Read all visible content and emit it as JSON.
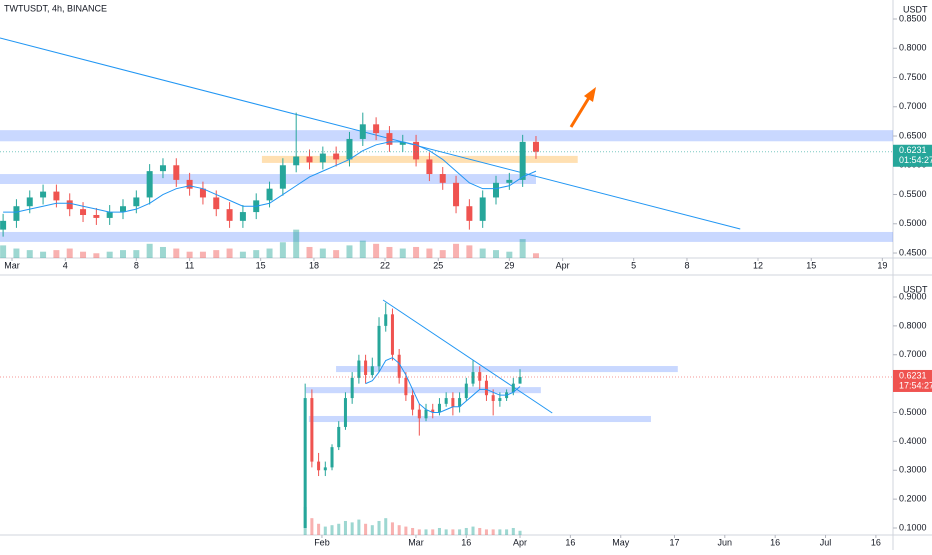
{
  "chart_data": [
    {
      "type": "candlestick",
      "title": "TWTUSDT, 4h, BINANCE",
      "axis_label": "USDT",
      "x": [
        -0.5,
        0.25,
        1,
        1.75,
        2.5,
        3.25,
        4,
        4.75,
        5.5,
        6.25,
        7,
        7.75,
        8.5,
        9.25,
        10,
        10.75,
        11.5,
        12.25,
        13,
        13.75,
        14.5,
        15.25,
        16,
        16.75,
        17.5,
        18.25,
        19,
        19.75,
        20.5,
        21.25,
        22,
        22.75,
        23.5,
        24.25,
        25,
        25.75,
        26.5,
        27.25,
        28,
        28.75,
        29.5
      ],
      "open": [
        0.49,
        0.505,
        0.53,
        0.545,
        0.555,
        0.54,
        0.525,
        0.515,
        0.51,
        0.52,
        0.53,
        0.545,
        0.59,
        0.6,
        0.575,
        0.56,
        0.545,
        0.525,
        0.505,
        0.52,
        0.54,
        0.56,
        0.6,
        0.615,
        0.605,
        0.62,
        0.61,
        0.645,
        0.67,
        0.655,
        0.635,
        0.64,
        0.61,
        0.585,
        0.57,
        0.53,
        0.505,
        0.545,
        0.57,
        0.575,
        0.64
      ],
      "high": [
        0.517,
        0.542,
        0.557,
        0.567,
        0.567,
        0.552,
        0.537,
        0.527,
        0.532,
        0.542,
        0.557,
        0.602,
        0.612,
        0.612,
        0.587,
        0.572,
        0.557,
        0.537,
        0.532,
        0.552,
        0.572,
        0.612,
        0.69,
        0.627,
        0.632,
        0.632,
        0.657,
        0.69,
        0.682,
        0.667,
        0.652,
        0.652,
        0.622,
        0.597,
        0.582,
        0.542,
        0.557,
        0.582,
        0.587,
        0.652,
        0.65
      ],
      "low": [
        0.478,
        0.493,
        0.518,
        0.533,
        0.528,
        0.513,
        0.503,
        0.498,
        0.498,
        0.508,
        0.518,
        0.533,
        0.578,
        0.563,
        0.548,
        0.533,
        0.513,
        0.493,
        0.493,
        0.508,
        0.528,
        0.548,
        0.588,
        0.593,
        0.593,
        0.598,
        0.598,
        0.633,
        0.643,
        0.623,
        0.623,
        0.598,
        0.573,
        0.558,
        0.518,
        0.49,
        0.493,
        0.533,
        0.558,
        0.563,
        0.611
      ],
      "close": [
        0.505,
        0.53,
        0.545,
        0.555,
        0.54,
        0.525,
        0.515,
        0.51,
        0.52,
        0.53,
        0.545,
        0.59,
        0.6,
        0.575,
        0.56,
        0.545,
        0.525,
        0.505,
        0.52,
        0.54,
        0.56,
        0.6,
        0.615,
        0.605,
        0.62,
        0.61,
        0.645,
        0.67,
        0.655,
        0.635,
        0.64,
        0.61,
        0.585,
        0.57,
        0.53,
        0.505,
        0.545,
        0.57,
        0.575,
        0.64,
        0.6231
      ],
      "volume": [
        8,
        6,
        5,
        4,
        5,
        6,
        4,
        3,
        4,
        5,
        5,
        9,
        7,
        6,
        4,
        4,
        5,
        6,
        4,
        5,
        6,
        10,
        18,
        7,
        6,
        5,
        8,
        11,
        9,
        7,
        6,
        7,
        6,
        5,
        9,
        8,
        6,
        5,
        4,
        12,
        3
      ],
      "ma": [
        0.52,
        0.52,
        0.525,
        0.53,
        0.535,
        0.535,
        0.53,
        0.525,
        0.52,
        0.52,
        0.525,
        0.535,
        0.55,
        0.56,
        0.565,
        0.56,
        0.55,
        0.54,
        0.53,
        0.53,
        0.535,
        0.55,
        0.565,
        0.58,
        0.59,
        0.6,
        0.61,
        0.625,
        0.635,
        0.64,
        0.64,
        0.635,
        0.625,
        0.61,
        0.59,
        0.57,
        0.56,
        0.56,
        0.565,
        0.58,
        0.59
      ],
      "ma_color": "#2196f3",
      "up_color": "#26a69a",
      "down_color": "#ef5350",
      "xlim": [
        -0.675,
        49.6
      ],
      "ylim": [
        0.4415,
        0.8825
      ],
      "xticks": [
        {
          "value": 0,
          "label": "Mar"
        },
        {
          "value": 3,
          "label": "4"
        },
        {
          "value": 7,
          "label": "8"
        },
        {
          "value": 10,
          "label": "11"
        },
        {
          "value": 14,
          "label": "15"
        },
        {
          "value": 17,
          "label": "18"
        },
        {
          "value": 21,
          "label": "22"
        },
        {
          "value": 24,
          "label": "25"
        },
        {
          "value": 28,
          "label": "29"
        },
        {
          "value": 31,
          "label": "Apr"
        },
        {
          "value": 35,
          "label": "5"
        },
        {
          "value": 38,
          "label": "8"
        },
        {
          "value": 42,
          "label": "12"
        },
        {
          "value": 45,
          "label": "15"
        },
        {
          "value": 49,
          "label": "19"
        }
      ],
      "yticks": [
        {
          "value": 0.45,
          "label": "0.4500"
        },
        {
          "value": 0.5,
          "label": "0.5000"
        },
        {
          "value": 0.55,
          "label": "0.5500"
        },
        {
          "value": 0.6,
          "label": "0.6000"
        },
        {
          "value": 0.65,
          "label": "0.6500"
        },
        {
          "value": 0.7,
          "label": "0.7000"
        },
        {
          "value": 0.75,
          "label": "0.7500"
        },
        {
          "value": 0.8,
          "label": "0.8000"
        },
        {
          "value": 0.85,
          "label": "0.8500"
        }
      ],
      "zones": [
        {
          "x": [
            -0.675,
            49.6
          ],
          "y": [
            0.641,
            0.66
          ],
          "color": "rgba(41,98,255,0.25)"
        },
        {
          "x": [
            -0.675,
            29.5
          ],
          "y": [
            0.568,
            0.585
          ],
          "color": "rgba(41,98,255,0.25)"
        },
        {
          "x": [
            -0.675,
            49.6
          ],
          "y": [
            0.469,
            0.486
          ],
          "color": "rgba(41,98,255,0.25)"
        },
        {
          "x": [
            14.07,
            31.85
          ],
          "y": [
            0.604,
            0.616
          ],
          "color": "rgba(255,152,0,0.3)"
        }
      ],
      "trendlines": [
        {
          "x": [
            -0.675,
            41
          ],
          "y": [
            0.8175,
            0.491
          ],
          "color": "#2196f3"
        }
      ],
      "last_price": 0.6231,
      "last_color": "#26a69a",
      "countdown": "01:54:27"
    },
    {
      "type": "candlestick",
      "axis_label": "USDT",
      "x": [
        -5,
        -3,
        -1,
        1,
        3,
        5,
        7,
        9,
        11,
        13,
        15,
        17,
        19,
        21,
        23,
        25,
        27,
        29,
        31,
        33,
        35,
        37,
        39,
        41,
        43,
        45,
        47,
        49,
        51,
        53,
        55,
        57,
        59
      ],
      "open": [
        0.1,
        0.55,
        0.33,
        0.3,
        0.31,
        0.38,
        0.45,
        0.55,
        0.62,
        0.68,
        0.63,
        0.66,
        0.8,
        0.84,
        0.7,
        0.62,
        0.56,
        0.51,
        0.48,
        0.51,
        0.5,
        0.53,
        0.55,
        0.52,
        0.55,
        0.6,
        0.64,
        0.61,
        0.56,
        0.54,
        0.55,
        0.57,
        0.6
      ],
      "high": [
        0.6,
        0.58,
        0.36,
        0.33,
        0.39,
        0.47,
        0.57,
        0.64,
        0.7,
        0.7,
        0.69,
        0.83,
        0.88,
        0.86,
        0.72,
        0.64,
        0.58,
        0.53,
        0.53,
        0.53,
        0.55,
        0.57,
        0.57,
        0.57,
        0.62,
        0.68,
        0.66,
        0.63,
        0.58,
        0.57,
        0.58,
        0.62,
        0.65
      ],
      "low": [
        0.1,
        0.31,
        0.28,
        0.28,
        0.3,
        0.37,
        0.44,
        0.53,
        0.6,
        0.6,
        0.62,
        0.64,
        0.78,
        0.68,
        0.6,
        0.54,
        0.49,
        0.42,
        0.47,
        0.48,
        0.49,
        0.52,
        0.49,
        0.5,
        0.54,
        0.59,
        0.58,
        0.54,
        0.49,
        0.52,
        0.54,
        0.56,
        0.6
      ],
      "close": [
        0.55,
        0.33,
        0.3,
        0.31,
        0.38,
        0.45,
        0.55,
        0.62,
        0.68,
        0.63,
        0.66,
        0.8,
        0.84,
        0.7,
        0.62,
        0.56,
        0.51,
        0.48,
        0.51,
        0.5,
        0.53,
        0.55,
        0.52,
        0.55,
        0.6,
        0.64,
        0.61,
        0.56,
        0.54,
        0.55,
        0.57,
        0.6,
        0.6231
      ],
      "volume": [
        20,
        12,
        8,
        6,
        7,
        8,
        10,
        9,
        11,
        8,
        7,
        10,
        12,
        9,
        7,
        6,
        5,
        4,
        4,
        4,
        5,
        4,
        4,
        4,
        5,
        6,
        5,
        4,
        4,
        4,
        4,
        5,
        3
      ],
      "ma": [
        null,
        null,
        null,
        null,
        null,
        null,
        null,
        null,
        null,
        0.6,
        0.61,
        0.64,
        0.68,
        0.69,
        0.67,
        0.63,
        0.58,
        0.53,
        0.51,
        0.5,
        0.5,
        0.51,
        0.52,
        0.52,
        0.54,
        0.56,
        0.58,
        0.58,
        0.57,
        0.56,
        0.56,
        0.57,
        0.59
      ],
      "ma_color": "#2196f3",
      "up_color": "#26a69a",
      "down_color": "#ef5350",
      "xlim": [
        -95.9,
        170.1
      ],
      "ylim": [
        0.0758,
        0.9589
      ],
      "xticks": [
        {
          "value": 0,
          "label": "Feb"
        },
        {
          "value": 28,
          "label": "Mar"
        },
        {
          "value": 43,
          "label": "16"
        },
        {
          "value": 59,
          "label": "Apr"
        },
        {
          "value": 74,
          "label": "16"
        },
        {
          "value": 89,
          "label": "May"
        },
        {
          "value": 105,
          "label": "17"
        },
        {
          "value": 120,
          "label": "Jun"
        },
        {
          "value": 135,
          "label": "16"
        },
        {
          "value": 150,
          "label": "Jul"
        },
        {
          "value": 165,
          "label": "16"
        }
      ],
      "yticks": [
        {
          "value": 0.1,
          "label": "0.1000"
        },
        {
          "value": 0.2,
          "label": "0.2000"
        },
        {
          "value": 0.3,
          "label": "0.3000"
        },
        {
          "value": 0.4,
          "label": "0.4000"
        },
        {
          "value": 0.5,
          "label": "0.5000"
        },
        {
          "value": 0.6,
          "label": "0.6000"
        },
        {
          "value": 0.7,
          "label": "0.7000"
        },
        {
          "value": 0.8,
          "label": "0.8000"
        },
        {
          "value": 0.9,
          "label": "0.9000"
        }
      ],
      "zones": [
        {
          "x": [
            4.2,
            106.0
          ],
          "y": [
            0.64,
            0.661
          ],
          "color": "rgba(41,98,255,0.25)"
        },
        {
          "x": [
            -4.8,
            65.2
          ],
          "y": [
            0.567,
            0.588
          ],
          "color": "rgba(41,98,255,0.25)"
        },
        {
          "x": [
            -3.9,
            98.0
          ],
          "y": [
            0.467,
            0.488
          ],
          "color": "rgba(41,98,255,0.25)"
        }
      ],
      "trendlines": [
        {
          "x": [
            18.2,
            68.6
          ],
          "y": [
            0.8896,
            0.4983
          ],
          "color": "#2196f3"
        }
      ],
      "last_price": 0.6231,
      "last_color": "#ef5350",
      "countdown": "17:54:27"
    }
  ]
}
